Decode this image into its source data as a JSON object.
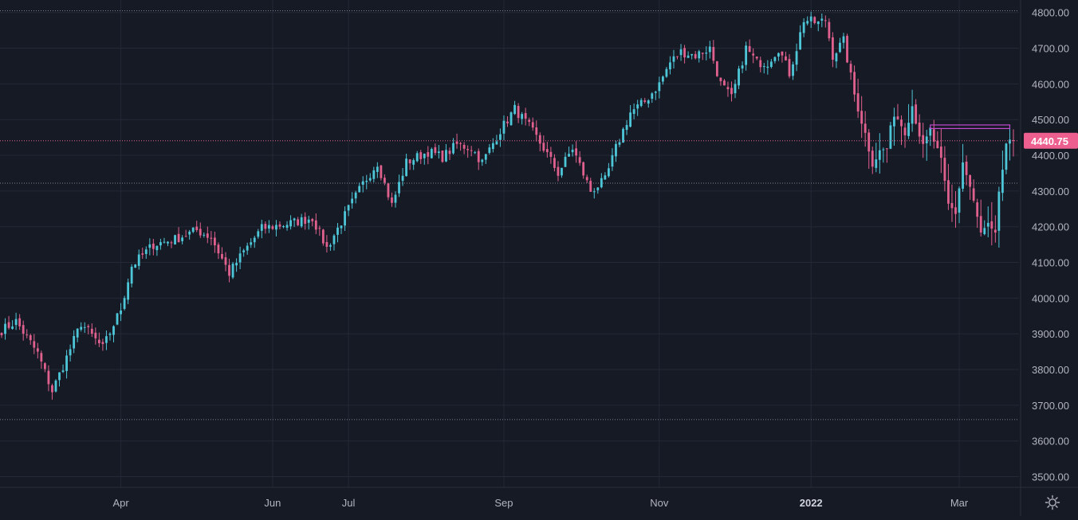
{
  "chart_data": {
    "type": "candlestick",
    "y_range": [
      3470,
      4835
    ],
    "y_ticks": [
      3500,
      3600,
      3700,
      3800,
      3900,
      4000,
      4100,
      4200,
      4300,
      4400,
      4500,
      4600,
      4700,
      4800
    ],
    "y_tick_labels": [
      "3500.00",
      "3600.00",
      "3700.00",
      "3800.00",
      "3900.00",
      "4000.00",
      "4100.00",
      "4200.00",
      "4300.00",
      "4400.00",
      "4500.00",
      "4600.00",
      "4700.00",
      "4800.00"
    ],
    "x_labels": [
      {
        "label": "Apr",
        "bold": false,
        "session": 33
      },
      {
        "label": "Jun",
        "bold": false,
        "session": 75
      },
      {
        "label": "Jul",
        "bold": false,
        "session": 96
      },
      {
        "label": "Sep",
        "bold": false,
        "session": 139
      },
      {
        "label": "Nov",
        "bold": false,
        "session": 182
      },
      {
        "label": "2022",
        "bold": true,
        "session": 224
      },
      {
        "label": "Mar",
        "bold": false,
        "session": 265
      }
    ],
    "session_count": 281,
    "last_price": 4440.75,
    "last_price_label": "4440.75",
    "reference_lines": [
      4805,
      4322,
      3660
    ],
    "highlight_range": {
      "from_session": 257,
      "to_session": 279,
      "low": 4475,
      "high": 4485
    },
    "anchors": [
      [
        0,
        3910
      ],
      [
        4,
        3935
      ],
      [
        10,
        3845
      ],
      [
        14,
        3740
      ],
      [
        17,
        3810
      ],
      [
        22,
        3930
      ],
      [
        28,
        3860
      ],
      [
        33,
        3970
      ],
      [
        36,
        4090
      ],
      [
        42,
        4150
      ],
      [
        48,
        4165
      ],
      [
        54,
        4190
      ],
      [
        58,
        4170
      ],
      [
        63,
        4070
      ],
      [
        67,
        4130
      ],
      [
        72,
        4195
      ],
      [
        80,
        4210
      ],
      [
        86,
        4225
      ],
      [
        90,
        4140
      ],
      [
        96,
        4250
      ],
      [
        100,
        4320
      ],
      [
        104,
        4380
      ],
      [
        108,
        4260
      ],
      [
        112,
        4380
      ],
      [
        118,
        4410
      ],
      [
        122,
        4395
      ],
      [
        126,
        4430
      ],
      [
        130,
        4420
      ],
      [
        133,
        4380
      ],
      [
        138,
        4470
      ],
      [
        142,
        4530
      ],
      [
        146,
        4480
      ],
      [
        150,
        4420
      ],
      [
        154,
        4350
      ],
      [
        158,
        4420
      ],
      [
        163,
        4300
      ],
      [
        167,
        4330
      ],
      [
        170,
        4420
      ],
      [
        174,
        4520
      ],
      [
        178,
        4550
      ],
      [
        182,
        4600
      ],
      [
        185,
        4660
      ],
      [
        188,
        4690
      ],
      [
        192,
        4680
      ],
      [
        196,
        4700
      ],
      [
        199,
        4600
      ],
      [
        202,
        4560
      ],
      [
        206,
        4700
      ],
      [
        209,
        4660
      ],
      [
        212,
        4660
      ],
      [
        215,
        4700
      ],
      [
        218,
        4630
      ],
      [
        220,
        4700
      ],
      [
        222,
        4780
      ],
      [
        226,
        4770
      ],
      [
        228,
        4780
      ],
      [
        230,
        4680
      ],
      [
        233,
        4720
      ],
      [
        236,
        4570
      ],
      [
        239,
        4460
      ],
      [
        241,
        4380
      ],
      [
        243,
        4410
      ],
      [
        245,
        4420
      ],
      [
        247,
        4520
      ],
      [
        250,
        4470
      ],
      [
        252,
        4540
      ],
      [
        255,
        4420
      ],
      [
        257,
        4470
      ],
      [
        260,
        4380
      ],
      [
        262,
        4260
      ],
      [
        264,
        4240
      ],
      [
        266,
        4380
      ],
      [
        268,
        4310
      ],
      [
        271,
        4180
      ],
      [
        273,
        4200
      ],
      [
        275,
        4170
      ],
      [
        276,
        4300
      ],
      [
        278,
        4420
      ],
      [
        280,
        4441
      ]
    ]
  },
  "colors": {
    "background": "#161a25",
    "grid": "#242837",
    "up": "#4dc6d8",
    "down": "#e0608e",
    "axis_text": "#b2b5be",
    "price_line": "#e0608e",
    "price_tag": "#ec5f8f",
    "highlight": "#c04ad0",
    "ref_line": "#7d8192"
  },
  "icons": {
    "settings": "gear-icon"
  }
}
